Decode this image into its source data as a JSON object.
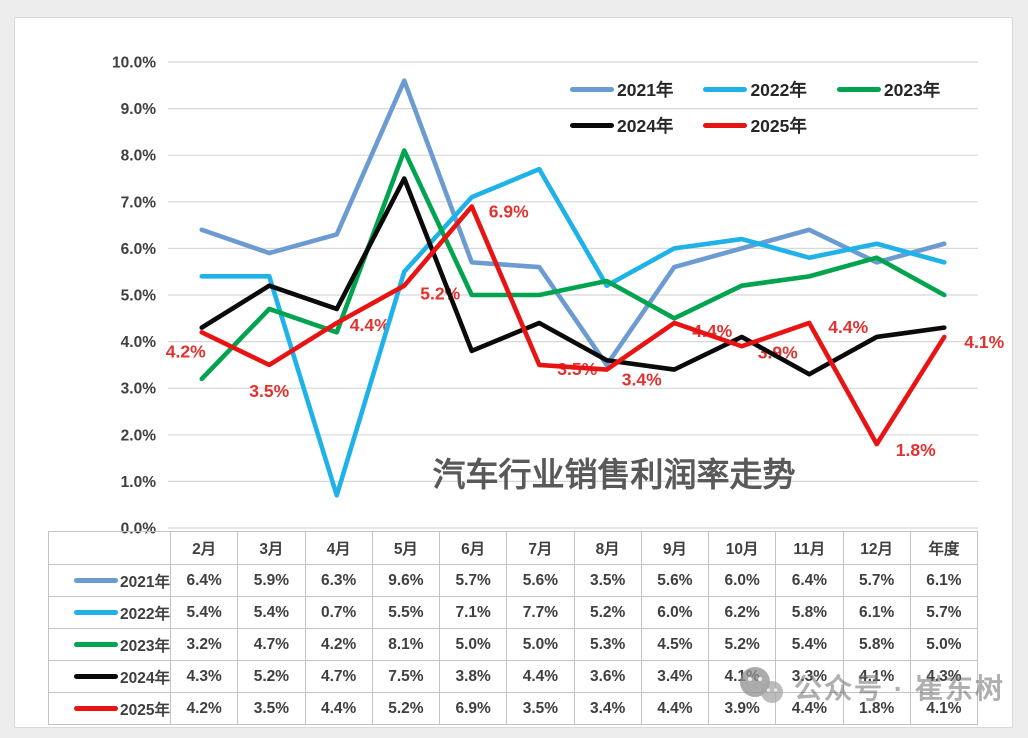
{
  "page": {
    "watermark": {
      "icon": "wechat-icon",
      "text": "公众号 · 崔东树"
    }
  },
  "chart_data": {
    "type": "line",
    "title": "汽车行业销售利润率走势",
    "categories": [
      "2月",
      "3月",
      "4月",
      "5月",
      "6月",
      "7月",
      "8月",
      "9月",
      "10月",
      "11月",
      "12月",
      "年度"
    ],
    "series": [
      {
        "name": "2021年",
        "color": "#6C9BD2",
        "values": [
          6.4,
          5.9,
          6.3,
          9.6,
          5.7,
          5.6,
          3.5,
          5.6,
          6.0,
          6.4,
          5.7,
          6.1
        ]
      },
      {
        "name": "2022年",
        "color": "#1FB2E8",
        "values": [
          5.4,
          5.4,
          0.7,
          5.5,
          7.1,
          7.7,
          5.2,
          6.0,
          6.2,
          5.8,
          6.1,
          5.7
        ]
      },
      {
        "name": "2023年",
        "color": "#00A44E",
        "values": [
          3.2,
          4.7,
          4.2,
          8.1,
          5.0,
          5.0,
          5.3,
          4.5,
          5.2,
          5.4,
          5.8,
          5.0
        ]
      },
      {
        "name": "2024年",
        "color": "#0A0A0A",
        "values": [
          4.3,
          5.2,
          4.7,
          7.5,
          3.8,
          4.4,
          3.6,
          3.4,
          4.1,
          3.3,
          4.1,
          4.3
        ]
      },
      {
        "name": "2025年",
        "color": "#E81414",
        "label_color": "#E03330",
        "values": [
          4.2,
          3.5,
          4.4,
          5.2,
          6.9,
          3.5,
          3.4,
          4.4,
          3.9,
          4.4,
          1.8,
          4.1
        ],
        "data_labels": [
          "4.2%",
          "3.5%",
          "4.4%",
          "5.2%",
          "6.9%",
          "3.5%",
          "3.4%",
          "4.4%",
          "3.9%",
          "4.4%",
          "1.8%",
          "4.1%"
        ]
      }
    ],
    "ylim": [
      0,
      10
    ],
    "y_tick_labels": [
      "0.0%",
      "1.0%",
      "2.0%",
      "3.0%",
      "4.0%",
      "5.0%",
      "6.0%",
      "7.0%",
      "8.0%",
      "9.0%",
      "10.0%"
    ],
    "grid": "horizontal",
    "legend_position": "top-right"
  },
  "table": {
    "columns": [
      "2月",
      "3月",
      "4月",
      "5月",
      "6月",
      "7月",
      "8月",
      "9月",
      "10月",
      "11月",
      "12月",
      "年度"
    ],
    "rows": [
      {
        "label": "2021年",
        "color": "#6C9BD2",
        "cells": [
          "6.4%",
          "5.9%",
          "6.3%",
          "9.6%",
          "5.7%",
          "5.6%",
          "3.5%",
          "5.6%",
          "6.0%",
          "6.4%",
          "5.7%",
          "6.1%"
        ]
      },
      {
        "label": "2022年",
        "color": "#1FB2E8",
        "cells": [
          "5.4%",
          "5.4%",
          "0.7%",
          "5.5%",
          "7.1%",
          "7.7%",
          "5.2%",
          "6.0%",
          "6.2%",
          "5.8%",
          "6.1%",
          "5.7%"
        ]
      },
      {
        "label": "2023年",
        "color": "#00A44E",
        "cells": [
          "3.2%",
          "4.7%",
          "4.2%",
          "8.1%",
          "5.0%",
          "5.0%",
          "5.3%",
          "4.5%",
          "5.2%",
          "5.4%",
          "5.8%",
          "5.0%"
        ]
      },
      {
        "label": "2024年",
        "color": "#0A0A0A",
        "cells": [
          "4.3%",
          "5.2%",
          "4.7%",
          "7.5%",
          "3.8%",
          "4.4%",
          "3.6%",
          "3.4%",
          "4.1%",
          "3.3%",
          "4.1%",
          "4.3%"
        ]
      },
      {
        "label": "2025年",
        "color": "#E81414",
        "cells": [
          "4.2%",
          "3.5%",
          "4.4%",
          "5.2%",
          "6.9%",
          "3.5%",
          "3.4%",
          "4.4%",
          "3.9%",
          "4.4%",
          "1.8%",
          "4.1%"
        ]
      }
    ]
  }
}
